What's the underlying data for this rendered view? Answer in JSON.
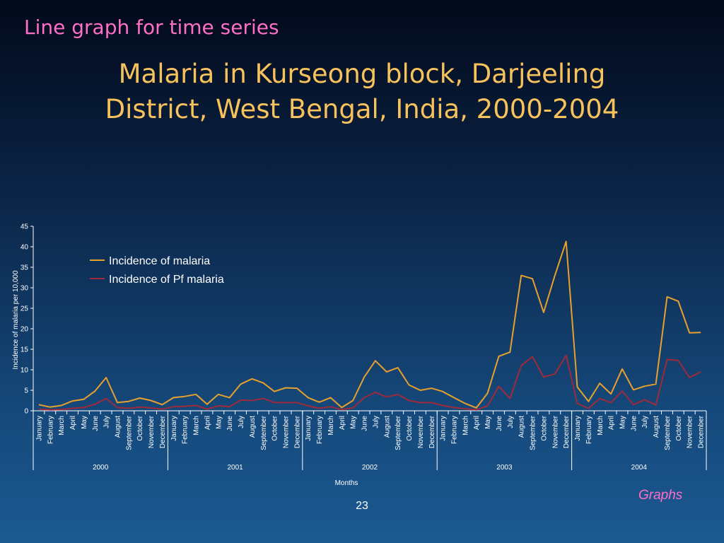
{
  "slide": {
    "label": "Line graph for time series",
    "title_line1": "Malaria in Kurseong block, Darjeeling",
    "title_line2": "District, West Bengal, India, 2000-2004",
    "footer_tag": "Graphs",
    "page_number": "23"
  },
  "chart_data": {
    "type": "line",
    "title": "",
    "xlabel": "Months",
    "ylabel": "Incidence of malaria per 10,000",
    "ylim": [
      0,
      45
    ],
    "yticks": [
      0,
      5,
      10,
      15,
      20,
      25,
      30,
      35,
      40,
      45
    ],
    "grid": false,
    "legend_position": "top-left",
    "categories": [
      "January",
      "February",
      "March",
      "April",
      "May",
      "June",
      "July",
      "August",
      "September",
      "October",
      "November",
      "December",
      "January",
      "February",
      "March",
      "April",
      "May",
      "June",
      "July",
      "August",
      "September",
      "October",
      "November",
      "December",
      "January",
      "February",
      "March",
      "April",
      "May",
      "June",
      "July",
      "August",
      "September",
      "October",
      "November",
      "December",
      "January",
      "February",
      "March",
      "April",
      "May",
      "June",
      "July",
      "August",
      "September",
      "October",
      "November",
      "December",
      "January",
      "February",
      "March",
      "April",
      "May",
      "June",
      "July",
      "August",
      "September",
      "October",
      "November",
      "December"
    ],
    "years": [
      "2000",
      "2001",
      "2002",
      "2003",
      "2004"
    ],
    "series": [
      {
        "name": "Incidence of  malaria",
        "color": "#e8a02c",
        "values": [
          1.5,
          0.9,
          1.3,
          2.4,
          2.8,
          4.8,
          8.1,
          2.0,
          2.3,
          3.1,
          2.5,
          1.5,
          3.2,
          3.5,
          4.0,
          1.6,
          4.0,
          3.2,
          6.5,
          7.8,
          6.8,
          4.7,
          5.6,
          5.5,
          3.2,
          2.1,
          3.2,
          0.8,
          2.5,
          8.2,
          12.2,
          9.5,
          10.5,
          6.3,
          5.0,
          5.5,
          4.7,
          3.2,
          1.8,
          0.7,
          4.3,
          13.3,
          14.3,
          33.0,
          32.2,
          24.0,
          33.0,
          41.3,
          5.8,
          2.3,
          6.7,
          4.1,
          10.2,
          5.1,
          6.0,
          6.5,
          27.8,
          26.7,
          19.0,
          19.1
        ]
      },
      {
        "name": "Incidence of Pf malaria",
        "color": "#9e2a3a",
        "values": [
          0.4,
          0.2,
          0.3,
          0.6,
          0.8,
          1.6,
          3.0,
          0.8,
          0.6,
          0.9,
          0.7,
          0.4,
          1.0,
          1.1,
          1.3,
          0.4,
          1.2,
          1.0,
          2.6,
          2.5,
          3.0,
          2.0,
          2.0,
          2.0,
          1.2,
          0.6,
          1.0,
          0.3,
          0.7,
          3.2,
          4.5,
          3.4,
          4.0,
          2.5,
          2.0,
          2.0,
          1.3,
          0.8,
          0.5,
          0.2,
          1.2,
          6.0,
          3.0,
          11.0,
          13.2,
          8.2,
          9.0,
          13.5,
          1.8,
          0.6,
          3.0,
          2.0,
          4.8,
          1.5,
          2.7,
          1.4,
          12.5,
          12.3,
          8.1,
          9.5
        ]
      }
    ]
  }
}
